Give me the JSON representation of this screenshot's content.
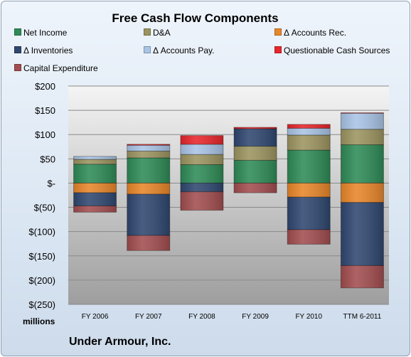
{
  "chart_data": {
    "type": "bar",
    "stacked": true,
    "title": "Free Cash Flow Components",
    "units_label": "millions",
    "footer": "Under Armour, Inc.",
    "categories": [
      "FY 2006",
      "FY 2007",
      "FY 2008",
      "FY 2009",
      "FY 2010",
      "TTM 6-2011"
    ],
    "ylim": [
      -250,
      200
    ],
    "yticks": [
      200,
      150,
      100,
      50,
      0,
      -50,
      -100,
      -150,
      -200,
      -250
    ],
    "ytick_labels": [
      "$200",
      "$150",
      "$100",
      "$50",
      "$-",
      "$(50)",
      "$(100)",
      "$(150)",
      "$(200)",
      "$(250)"
    ],
    "grid": true,
    "legend_position": "top",
    "series": [
      {
        "name": "Net Income",
        "color": "#2e8b57",
        "values": [
          39,
          52,
          38,
          47,
          68,
          79
        ]
      },
      {
        "name": "D&A",
        "color": "#9c9460",
        "values": [
          10,
          14,
          21,
          29,
          31,
          32
        ]
      },
      {
        "name": "Δ Accounts Rec.",
        "color": "#e8862a",
        "values": [
          -20,
          -23,
          0,
          0,
          -29,
          -40
        ]
      },
      {
        "name": "Δ Inventories",
        "color": "#2f4770",
        "values": [
          -27,
          -85,
          -18,
          36,
          -67,
          -130
        ]
      },
      {
        "name": "Δ Accounts Pay.",
        "color": "#a9c4e6",
        "values": [
          6,
          12,
          21,
          0,
          14,
          33
        ]
      },
      {
        "name": "Questionable Cash Sources",
        "color": "#e8262c",
        "values": [
          0,
          2,
          18,
          3,
          8,
          1
        ]
      },
      {
        "name": "Capital Expenditure",
        "color": "#a24d4f",
        "values": [
          -13,
          -31,
          -38,
          -20,
          -30,
          -46
        ]
      }
    ]
  }
}
